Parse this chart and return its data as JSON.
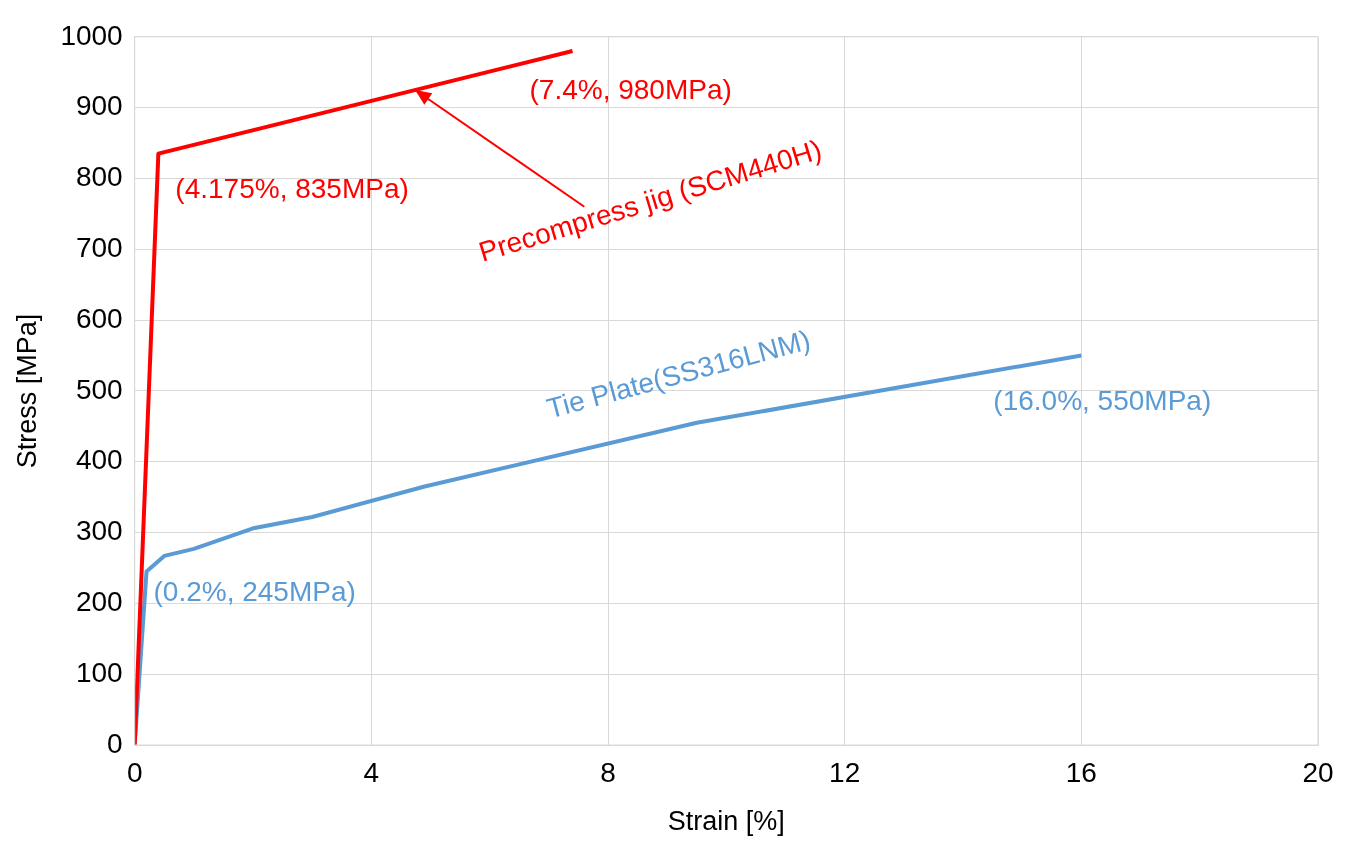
{
  "chart_data": {
    "type": "line",
    "xlabel": "Strain [%]",
    "ylabel": "Stress [MPa]",
    "xlim": [
      0,
      20
    ],
    "xticks": [
      0,
      4,
      8,
      12,
      16,
      20
    ],
    "ylim": [
      0,
      1000
    ],
    "yticks": [
      0,
      100,
      200,
      300,
      400,
      500,
      600,
      700,
      800,
      900,
      1000
    ],
    "grid": true,
    "legend": false,
    "marker": "none",
    "line_style": "solid",
    "series": [
      {
        "name": "Precompress jig (SCM440H)",
        "color": "#ff0000",
        "x": [
          0,
          0.4,
          7.4
        ],
        "values": [
          0,
          835,
          980
        ]
      },
      {
        "name": "Tie Plate(SS316LNM)",
        "color": "#5b9bd5",
        "x": [
          0,
          0.2,
          0.5,
          1,
          2,
          3,
          4.9,
          9.5,
          16
        ],
        "values": [
          0,
          245,
          267,
          277,
          306,
          322,
          365,
          455,
          550
        ]
      }
    ],
    "annotations": [
      {
        "text": "(7.4%, 980MPa)",
        "x": 7.4,
        "y": 980
      },
      {
        "text": "(4.175%, 835MPa)",
        "x": 0.4,
        "y": 835
      },
      {
        "text": "(0.2%, 245MPa)",
        "x": 0.2,
        "y": 245
      },
      {
        "text": "(16.0%, 550MPa)",
        "x": 16,
        "y": 550
      }
    ]
  }
}
